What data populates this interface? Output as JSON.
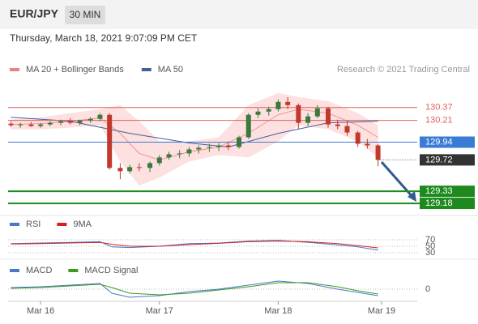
{
  "chart_data": {
    "type": "candlestick",
    "title": "EUR/JPY",
    "timeframe": "30 MIN",
    "subtitle": "Thursday, March 18, 2021 9:07:09 PM CET",
    "credit": "Research © 2021 Trading Central",
    "xlim": [
      -0.26,
      3.17
    ],
    "xticks": [
      {
        "value": 0,
        "label": "Mar 16"
      },
      {
        "value": 1,
        "label": "Mar 17"
      },
      {
        "value": 2,
        "label": "Mar 18"
      },
      {
        "value": 2.87,
        "label": "Mar 19"
      }
    ],
    "ylim": [
      129.07,
      130.75
    ],
    "up_color": "#3a7a3a",
    "down_color": "#c0392b",
    "candles": {
      "x": [
        -0.25,
        -0.17,
        -0.08,
        0,
        0.08,
        0.17,
        0.25,
        0.33,
        0.42,
        0.5,
        0.58,
        0.67,
        0.75,
        0.83,
        0.92,
        1.0,
        1.08,
        1.17,
        1.25,
        1.33,
        1.42,
        1.5,
        1.58,
        1.67,
        1.75,
        1.83,
        1.92,
        2.0,
        2.08,
        2.17,
        2.25,
        2.33,
        2.42,
        2.5,
        2.58,
        2.67,
        2.75,
        2.84
      ],
      "open": [
        130.17,
        130.15,
        130.16,
        130.14,
        130.16,
        130.18,
        130.2,
        130.18,
        130.21,
        130.23,
        130.28,
        129.62,
        129.58,
        129.63,
        129.62,
        129.68,
        129.75,
        129.79,
        129.8,
        129.85,
        129.87,
        129.88,
        129.9,
        129.88,
        130.0,
        130.28,
        130.32,
        130.35,
        130.44,
        130.4,
        130.18,
        130.26,
        130.36,
        130.16,
        130.14,
        130.06,
        129.92,
        129.9
      ],
      "high": [
        130.2,
        130.18,
        130.19,
        130.18,
        130.2,
        130.22,
        130.24,
        130.22,
        130.25,
        130.3,
        130.3,
        129.68,
        129.66,
        129.68,
        129.7,
        129.78,
        129.82,
        129.84,
        129.88,
        129.9,
        129.92,
        129.93,
        129.95,
        130.02,
        130.3,
        130.36,
        130.38,
        130.47,
        130.5,
        130.42,
        130.3,
        130.4,
        130.38,
        130.22,
        130.2,
        130.08,
        129.98,
        129.92
      ],
      "low": [
        130.13,
        130.12,
        130.13,
        130.12,
        130.14,
        130.15,
        130.16,
        130.15,
        130.18,
        130.2,
        129.6,
        129.48,
        129.55,
        129.58,
        129.57,
        129.65,
        129.72,
        129.74,
        129.76,
        129.8,
        129.82,
        129.83,
        129.84,
        129.86,
        129.98,
        130.24,
        130.27,
        130.32,
        130.35,
        130.1,
        130.14,
        130.24,
        130.12,
        130.1,
        130.02,
        129.88,
        129.86,
        129.64
      ],
      "close": [
        130.15,
        130.16,
        130.14,
        130.16,
        130.18,
        130.2,
        130.18,
        130.21,
        130.23,
        130.28,
        129.62,
        129.58,
        129.63,
        129.62,
        129.68,
        129.75,
        129.79,
        129.8,
        129.85,
        129.87,
        129.88,
        129.9,
        129.88,
        130.0,
        130.28,
        130.32,
        130.35,
        130.44,
        130.4,
        130.18,
        130.26,
        130.36,
        130.16,
        130.14,
        130.06,
        129.92,
        129.9,
        129.72
      ]
    },
    "bollinger": {
      "name": "MA 20 + Bollinger Bands",
      "color": "#f08080",
      "fill": "#fde0e0",
      "x": [
        -0.25,
        0,
        0.25,
        0.5,
        0.67,
        0.83,
        1.0,
        1.25,
        1.5,
        1.75,
        2.0,
        2.17,
        2.42,
        2.67,
        2.84
      ],
      "upper": [
        130.22,
        130.25,
        130.3,
        130.35,
        130.4,
        130.2,
        129.95,
        129.95,
        130.0,
        130.4,
        130.55,
        130.5,
        130.45,
        130.3,
        130.15
      ],
      "middle": [
        130.16,
        130.17,
        130.2,
        130.24,
        130.05,
        129.8,
        129.72,
        129.82,
        129.88,
        130.05,
        130.28,
        130.35,
        130.3,
        130.15,
        130.0
      ],
      "lower": [
        130.1,
        130.1,
        130.12,
        130.15,
        129.7,
        129.4,
        129.5,
        129.7,
        129.78,
        129.75,
        129.95,
        130.15,
        130.1,
        129.95,
        129.75
      ]
    },
    "ma50": {
      "name": "MA 50",
      "color": "#4060a0",
      "x": [
        -0.25,
        0.25,
        0.75,
        1.25,
        1.58,
        2.0,
        2.42,
        2.84
      ],
      "values": [
        130.25,
        130.2,
        130.05,
        129.93,
        129.88,
        130.05,
        130.18,
        130.2
      ]
    },
    "levels": [
      {
        "value": 130.37,
        "color": "#e06060",
        "style": "text"
      },
      {
        "value": 130.21,
        "color": "#e06060",
        "style": "text"
      },
      {
        "value": 129.94,
        "color": "#3a7bd5",
        "style": "box"
      },
      {
        "value": 129.72,
        "color": "#333333",
        "style": "last"
      },
      {
        "value": 129.33,
        "color": "#1e8a1e",
        "style": "support"
      },
      {
        "value": 129.18,
        "color": "#1e8a1e",
        "style": "support"
      }
    ],
    "rsi": {
      "ylim": [
        15,
        90
      ],
      "yticks": [
        70,
        50,
        30
      ],
      "x": [
        -0.25,
        0,
        0.25,
        0.5,
        0.6,
        0.75,
        1.0,
        1.25,
        1.5,
        1.75,
        2.0,
        2.25,
        2.5,
        2.67,
        2.84
      ],
      "series": [
        {
          "name": "RSI",
          "color": "#4a78c8",
          "values": [
            58,
            60,
            62,
            64,
            48,
            46,
            50,
            58,
            60,
            66,
            68,
            62,
            54,
            48,
            38
          ]
        },
        {
          "name": "9MA",
          "color": "#d42020",
          "values": [
            57,
            58,
            60,
            62,
            56,
            50,
            50,
            55,
            59,
            64,
            66,
            64,
            58,
            52,
            45
          ]
        }
      ]
    },
    "macd": {
      "ylim": [
        -0.14,
        0.14
      ],
      "yticks": [
        0
      ],
      "x": [
        -0.25,
        0,
        0.25,
        0.5,
        0.6,
        0.75,
        1.0,
        1.25,
        1.5,
        1.75,
        2.0,
        2.25,
        2.5,
        2.67,
        2.84
      ],
      "series": [
        {
          "name": "MACD",
          "color": "#4a78c8",
          "values": [
            0.02,
            0.03,
            0.05,
            0.07,
            -0.05,
            -0.1,
            -0.08,
            -0.03,
            0.0,
            0.05,
            0.1,
            0.07,
            0.0,
            -0.04,
            -0.08
          ]
        },
        {
          "name": "MACD Signal",
          "color": "#3a9a20",
          "values": [
            0.01,
            0.02,
            0.04,
            0.06,
            0.02,
            -0.05,
            -0.07,
            -0.05,
            -0.01,
            0.03,
            0.08,
            0.08,
            0.03,
            -0.02,
            -0.06
          ]
        }
      ]
    }
  }
}
